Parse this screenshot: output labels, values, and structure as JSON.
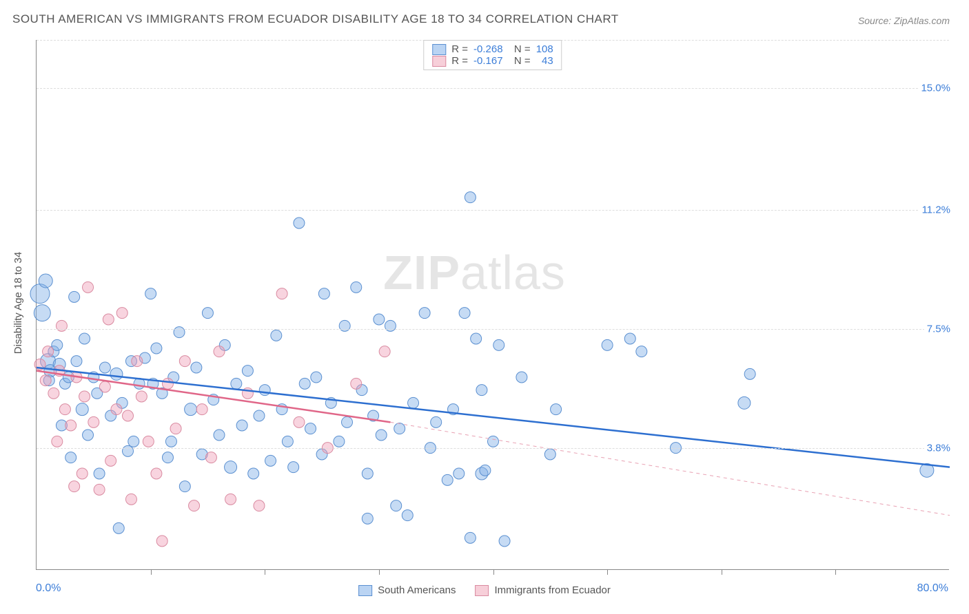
{
  "title": "SOUTH AMERICAN VS IMMIGRANTS FROM ECUADOR DISABILITY AGE 18 TO 34 CORRELATION CHART",
  "source": "Source: ZipAtlas.com",
  "y_axis_label": "Disability Age 18 to 34",
  "watermark": {
    "bold": "ZIP",
    "rest": "atlas"
  },
  "chart": {
    "type": "scatter",
    "xlim": [
      0,
      80
    ],
    "ylim": [
      0,
      16.5
    ],
    "x_corner_left": "0.0%",
    "x_corner_right": "80.0%",
    "x_tick_positions": [
      10,
      20,
      30,
      40,
      50,
      60,
      70
    ],
    "y_gridlines": [
      3.8,
      7.5,
      11.2,
      15.0
    ],
    "y_tick_labels": [
      "3.8%",
      "7.5%",
      "11.2%",
      "15.0%"
    ],
    "background_color": "#ffffff",
    "grid_color": "#dddddd",
    "axis_color": "#888888",
    "tick_label_color": "#3b7dd8",
    "series": [
      {
        "name": "South Americans",
        "color_fill": "rgba(129,175,231,0.45)",
        "color_stroke": "#5a8fd0",
        "regression_color": "#2d6fd0",
        "R": "-0.268",
        "N": "108",
        "regression": {
          "x1": 0,
          "y1": 6.3,
          "x2": 80,
          "y2": 3.2
        },
        "points": [
          {
            "x": 0.3,
            "y": 8.6,
            "r": 14
          },
          {
            "x": 0.5,
            "y": 8.0,
            "r": 12
          },
          {
            "x": 0.8,
            "y": 9.0,
            "r": 10
          },
          {
            "x": 1.0,
            "y": 6.5,
            "r": 11
          },
          {
            "x": 1.2,
            "y": 6.2,
            "r": 9
          },
          {
            "x": 1.1,
            "y": 5.9,
            "r": 8
          },
          {
            "x": 1.5,
            "y": 6.8,
            "r": 8
          },
          {
            "x": 1.8,
            "y": 7.0,
            "r": 8
          },
          {
            "x": 2.0,
            "y": 6.4,
            "r": 9
          },
          {
            "x": 2.2,
            "y": 4.5,
            "r": 8
          },
          {
            "x": 2.5,
            "y": 5.8,
            "r": 8
          },
          {
            "x": 2.8,
            "y": 6.0,
            "r": 8
          },
          {
            "x": 3.0,
            "y": 3.5,
            "r": 8
          },
          {
            "x": 3.3,
            "y": 8.5,
            "r": 8
          },
          {
            "x": 3.5,
            "y": 6.5,
            "r": 8
          },
          {
            "x": 4.0,
            "y": 5.0,
            "r": 9
          },
          {
            "x": 4.2,
            "y": 7.2,
            "r": 8
          },
          {
            "x": 4.5,
            "y": 4.2,
            "r": 8
          },
          {
            "x": 5.0,
            "y": 6.0,
            "r": 8
          },
          {
            "x": 5.3,
            "y": 5.5,
            "r": 8
          },
          {
            "x": 5.5,
            "y": 3.0,
            "r": 8
          },
          {
            "x": 6.0,
            "y": 6.3,
            "r": 8
          },
          {
            "x": 6.5,
            "y": 4.8,
            "r": 8
          },
          {
            "x": 7.0,
            "y": 6.1,
            "r": 9
          },
          {
            "x": 7.2,
            "y": 1.3,
            "r": 8
          },
          {
            "x": 7.5,
            "y": 5.2,
            "r": 8
          },
          {
            "x": 8.0,
            "y": 3.7,
            "r": 8
          },
          {
            "x": 8.3,
            "y": 6.5,
            "r": 8
          },
          {
            "x": 8.5,
            "y": 4.0,
            "r": 8
          },
          {
            "x": 9.0,
            "y": 5.8,
            "r": 8
          },
          {
            "x": 9.5,
            "y": 6.6,
            "r": 8
          },
          {
            "x": 10.0,
            "y": 8.6,
            "r": 8
          },
          {
            "x": 10.2,
            "y": 5.8,
            "r": 8
          },
          {
            "x": 10.5,
            "y": 6.9,
            "r": 8
          },
          {
            "x": 11.0,
            "y": 5.5,
            "r": 8
          },
          {
            "x": 11.5,
            "y": 3.5,
            "r": 8
          },
          {
            "x": 11.8,
            "y": 4.0,
            "r": 8
          },
          {
            "x": 12.0,
            "y": 6.0,
            "r": 8
          },
          {
            "x": 12.5,
            "y": 7.4,
            "r": 8
          },
          {
            "x": 13.0,
            "y": 2.6,
            "r": 8
          },
          {
            "x": 13.5,
            "y": 5.0,
            "r": 9
          },
          {
            "x": 14.0,
            "y": 6.3,
            "r": 8
          },
          {
            "x": 14.5,
            "y": 3.6,
            "r": 8
          },
          {
            "x": 15.0,
            "y": 8.0,
            "r": 8
          },
          {
            "x": 15.5,
            "y": 5.3,
            "r": 8
          },
          {
            "x": 16.0,
            "y": 4.2,
            "r": 8
          },
          {
            "x": 16.5,
            "y": 7.0,
            "r": 8
          },
          {
            "x": 17.0,
            "y": 3.2,
            "r": 9
          },
          {
            "x": 17.5,
            "y": 5.8,
            "r": 8
          },
          {
            "x": 18.0,
            "y": 4.5,
            "r": 8
          },
          {
            "x": 18.5,
            "y": 6.2,
            "r": 8
          },
          {
            "x": 19.0,
            "y": 3.0,
            "r": 8
          },
          {
            "x": 19.5,
            "y": 4.8,
            "r": 8
          },
          {
            "x": 20.0,
            "y": 5.6,
            "r": 8
          },
          {
            "x": 20.5,
            "y": 3.4,
            "r": 8
          },
          {
            "x": 21.0,
            "y": 7.3,
            "r": 8
          },
          {
            "x": 21.5,
            "y": 5.0,
            "r": 8
          },
          {
            "x": 22.0,
            "y": 4.0,
            "r": 8
          },
          {
            "x": 22.5,
            "y": 3.2,
            "r": 8
          },
          {
            "x": 23.0,
            "y": 10.8,
            "r": 8
          },
          {
            "x": 23.5,
            "y": 5.8,
            "r": 8
          },
          {
            "x": 24.0,
            "y": 4.4,
            "r": 8
          },
          {
            "x": 24.5,
            "y": 6.0,
            "r": 8
          },
          {
            "x": 25.0,
            "y": 3.6,
            "r": 8
          },
          {
            "x": 25.2,
            "y": 8.6,
            "r": 8
          },
          {
            "x": 25.8,
            "y": 5.2,
            "r": 8
          },
          {
            "x": 26.5,
            "y": 4.0,
            "r": 8
          },
          {
            "x": 27.0,
            "y": 7.6,
            "r": 8
          },
          {
            "x": 27.2,
            "y": 4.6,
            "r": 8
          },
          {
            "x": 28.0,
            "y": 8.8,
            "r": 8
          },
          {
            "x": 28.5,
            "y": 5.6,
            "r": 8
          },
          {
            "x": 29.0,
            "y": 3.0,
            "r": 8
          },
          {
            "x": 29.0,
            "y": 1.6,
            "r": 8
          },
          {
            "x": 29.5,
            "y": 4.8,
            "r": 8
          },
          {
            "x": 30.0,
            "y": 7.8,
            "r": 8
          },
          {
            "x": 30.2,
            "y": 4.2,
            "r": 8
          },
          {
            "x": 31.0,
            "y": 7.6,
            "r": 8
          },
          {
            "x": 31.5,
            "y": 2.0,
            "r": 8
          },
          {
            "x": 31.8,
            "y": 4.4,
            "r": 8
          },
          {
            "x": 32.5,
            "y": 1.7,
            "r": 8
          },
          {
            "x": 33.0,
            "y": 5.2,
            "r": 8
          },
          {
            "x": 34.0,
            "y": 8.0,
            "r": 8
          },
          {
            "x": 34.5,
            "y": 3.8,
            "r": 8
          },
          {
            "x": 35.0,
            "y": 4.6,
            "r": 8
          },
          {
            "x": 36.0,
            "y": 2.8,
            "r": 8
          },
          {
            "x": 36.5,
            "y": 5.0,
            "r": 8
          },
          {
            "x": 37.0,
            "y": 3.0,
            "r": 8
          },
          {
            "x": 37.5,
            "y": 8.0,
            "r": 8
          },
          {
            "x": 38.0,
            "y": 11.6,
            "r": 8
          },
          {
            "x": 38.0,
            "y": 1.0,
            "r": 8
          },
          {
            "x": 38.5,
            "y": 7.2,
            "r": 8
          },
          {
            "x": 39.0,
            "y": 3.0,
            "r": 9
          },
          {
            "x": 39.0,
            "y": 5.6,
            "r": 8
          },
          {
            "x": 39.3,
            "y": 3.1,
            "r": 8
          },
          {
            "x": 40.0,
            "y": 4.0,
            "r": 8
          },
          {
            "x": 40.5,
            "y": 7.0,
            "r": 8
          },
          {
            "x": 41.0,
            "y": 0.9,
            "r": 8
          },
          {
            "x": 42.5,
            "y": 6.0,
            "r": 8
          },
          {
            "x": 45.0,
            "y": 3.6,
            "r": 8
          },
          {
            "x": 45.5,
            "y": 5.0,
            "r": 8
          },
          {
            "x": 50.0,
            "y": 7.0,
            "r": 8
          },
          {
            "x": 52.0,
            "y": 7.2,
            "r": 8
          },
          {
            "x": 53.0,
            "y": 6.8,
            "r": 8
          },
          {
            "x": 56.0,
            "y": 3.8,
            "r": 8
          },
          {
            "x": 62.0,
            "y": 5.2,
            "r": 9
          },
          {
            "x": 62.5,
            "y": 6.1,
            "r": 8
          },
          {
            "x": 78.0,
            "y": 3.1,
            "r": 10
          }
        ]
      },
      {
        "name": "Immigrants from Ecuador",
        "color_fill": "rgba(240,160,185,0.45)",
        "color_stroke": "#d98aa0",
        "regression_color": "#e06688",
        "R": "-0.167",
        "N": "43",
        "regression": {
          "x1": 0,
          "y1": 6.2,
          "x2": 31,
          "y2": 4.6
        },
        "regression_dash": {
          "x1": 31,
          "y1": 4.6,
          "x2": 80,
          "y2": 1.7
        },
        "points": [
          {
            "x": 0.3,
            "y": 6.4,
            "r": 8
          },
          {
            "x": 0.8,
            "y": 5.9,
            "r": 8
          },
          {
            "x": 1.0,
            "y": 6.8,
            "r": 8
          },
          {
            "x": 1.5,
            "y": 5.5,
            "r": 8
          },
          {
            "x": 1.8,
            "y": 4.0,
            "r": 8
          },
          {
            "x": 2.0,
            "y": 6.2,
            "r": 8
          },
          {
            "x": 2.2,
            "y": 7.6,
            "r": 8
          },
          {
            "x": 2.5,
            "y": 5.0,
            "r": 8
          },
          {
            "x": 3.0,
            "y": 4.5,
            "r": 8
          },
          {
            "x": 3.3,
            "y": 2.6,
            "r": 8
          },
          {
            "x": 3.5,
            "y": 6.0,
            "r": 8
          },
          {
            "x": 4.0,
            "y": 3.0,
            "r": 8
          },
          {
            "x": 4.2,
            "y": 5.4,
            "r": 8
          },
          {
            "x": 4.5,
            "y": 8.8,
            "r": 8
          },
          {
            "x": 5.0,
            "y": 4.6,
            "r": 8
          },
          {
            "x": 5.5,
            "y": 2.5,
            "r": 8
          },
          {
            "x": 6.0,
            "y": 5.7,
            "r": 8
          },
          {
            "x": 6.3,
            "y": 7.8,
            "r": 8
          },
          {
            "x": 6.5,
            "y": 3.4,
            "r": 8
          },
          {
            "x": 7.0,
            "y": 5.0,
            "r": 8
          },
          {
            "x": 7.5,
            "y": 8.0,
            "r": 8
          },
          {
            "x": 8.0,
            "y": 4.8,
            "r": 8
          },
          {
            "x": 8.3,
            "y": 2.2,
            "r": 8
          },
          {
            "x": 8.8,
            "y": 6.5,
            "r": 8
          },
          {
            "x": 9.2,
            "y": 5.4,
            "r": 8
          },
          {
            "x": 9.8,
            "y": 4.0,
            "r": 8
          },
          {
            "x": 10.5,
            "y": 3.0,
            "r": 8
          },
          {
            "x": 11.0,
            "y": 0.9,
            "r": 8
          },
          {
            "x": 11.5,
            "y": 5.8,
            "r": 8
          },
          {
            "x": 12.2,
            "y": 4.4,
            "r": 8
          },
          {
            "x": 13.0,
            "y": 6.5,
            "r": 8
          },
          {
            "x": 13.8,
            "y": 2.0,
            "r": 8
          },
          {
            "x": 14.5,
            "y": 5.0,
            "r": 8
          },
          {
            "x": 15.3,
            "y": 3.5,
            "r": 8
          },
          {
            "x": 16.0,
            "y": 6.8,
            "r": 8
          },
          {
            "x": 17.0,
            "y": 2.2,
            "r": 8
          },
          {
            "x": 18.5,
            "y": 5.5,
            "r": 8
          },
          {
            "x": 19.5,
            "y": 2.0,
            "r": 8
          },
          {
            "x": 21.5,
            "y": 8.6,
            "r": 8
          },
          {
            "x": 23.0,
            "y": 4.6,
            "r": 8
          },
          {
            "x": 25.5,
            "y": 3.8,
            "r": 8
          },
          {
            "x": 28.0,
            "y": 5.8,
            "r": 8
          },
          {
            "x": 30.5,
            "y": 6.8,
            "r": 8
          }
        ]
      }
    ]
  },
  "legend_bottom": [
    {
      "swatch": "blue",
      "label": "South Americans"
    },
    {
      "swatch": "pink",
      "label": "Immigrants from Ecuador"
    }
  ]
}
